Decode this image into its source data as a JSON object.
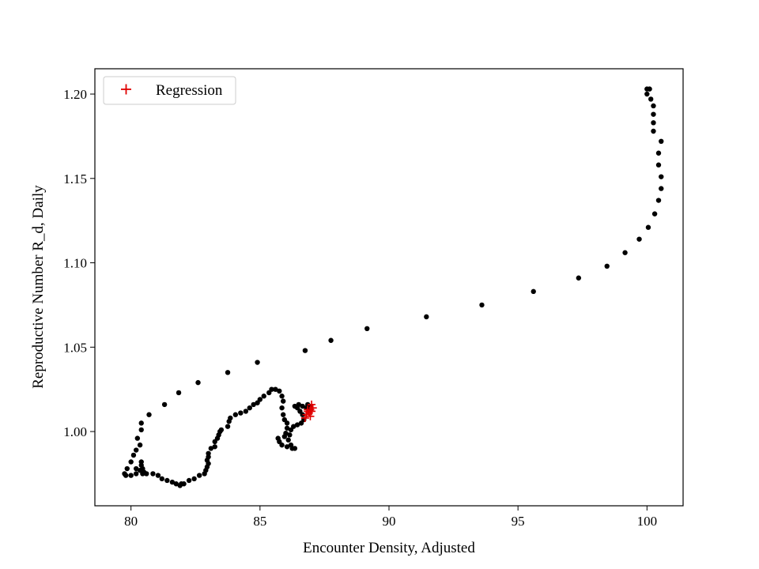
{
  "chart_data": {
    "type": "scatter",
    "title": "",
    "xlabel": "Encounter Density, Adjusted",
    "ylabel": "Reproductive Number R_d, Daily",
    "xlim": [
      78.6,
      101.4
    ],
    "ylim": [
      0.956,
      1.215
    ],
    "xticks": [
      80,
      85,
      90,
      95,
      100
    ],
    "yticks": [
      1.0,
      1.05,
      1.1,
      1.15,
      1.2
    ],
    "xtick_labels": [
      "80",
      "85",
      "90",
      "95",
      "100"
    ],
    "ytick_labels": [
      "1.00",
      "1.05",
      "1.10",
      "1.15",
      "1.20"
    ],
    "grid": false,
    "legend": {
      "position": "top-left",
      "entries": [
        "Regression"
      ]
    },
    "series": [
      {
        "marker": "dot",
        "color": "#000000",
        "points": [
          [
            100.0,
            1.203
          ],
          [
            100.1,
            1.203
          ],
          [
            100.0,
            1.2
          ],
          [
            100.15,
            1.197
          ],
          [
            100.25,
            1.193
          ],
          [
            100.25,
            1.188
          ],
          [
            100.25,
            1.183
          ],
          [
            100.25,
            1.178
          ],
          [
            100.55,
            1.172
          ],
          [
            100.45,
            1.165
          ],
          [
            100.45,
            1.158
          ],
          [
            100.55,
            1.151
          ],
          [
            100.55,
            1.144
          ],
          [
            100.45,
            1.137
          ],
          [
            100.3,
            1.129
          ],
          [
            100.05,
            1.121
          ],
          [
            99.7,
            1.114
          ],
          [
            99.15,
            1.106
          ],
          [
            98.45,
            1.098
          ],
          [
            97.35,
            1.091
          ],
          [
            95.6,
            1.083
          ],
          [
            93.6,
            1.075
          ],
          [
            91.45,
            1.068
          ],
          [
            89.15,
            1.061
          ],
          [
            87.75,
            1.054
          ],
          [
            86.75,
            1.048
          ],
          [
            84.9,
            1.041
          ],
          [
            83.75,
            1.035
          ],
          [
            82.6,
            1.029
          ],
          [
            81.85,
            1.023
          ],
          [
            81.3,
            1.016
          ],
          [
            80.7,
            1.01
          ],
          [
            80.4,
            1.005
          ],
          [
            80.4,
            1.001
          ],
          [
            80.25,
            0.996
          ],
          [
            80.35,
            0.992
          ],
          [
            80.2,
            0.989
          ],
          [
            80.1,
            0.986
          ],
          [
            80.0,
            0.982
          ],
          [
            79.85,
            0.978
          ],
          [
            79.75,
            0.975
          ],
          [
            79.8,
            0.974
          ],
          [
            80.0,
            0.974
          ],
          [
            80.2,
            0.975
          ],
          [
            80.45,
            0.975
          ],
          [
            80.45,
            0.978
          ],
          [
            80.4,
            0.98
          ],
          [
            80.4,
            0.982
          ],
          [
            80.2,
            0.978
          ],
          [
            80.35,
            0.977
          ],
          [
            80.5,
            0.976
          ],
          [
            80.6,
            0.975
          ],
          [
            80.85,
            0.975
          ],
          [
            81.05,
            0.974
          ],
          [
            81.2,
            0.972
          ],
          [
            81.4,
            0.971
          ],
          [
            81.6,
            0.97
          ],
          [
            81.75,
            0.969
          ],
          [
            81.9,
            0.968
          ],
          [
            81.95,
            0.969
          ],
          [
            82.05,
            0.969
          ],
          [
            82.25,
            0.971
          ],
          [
            82.45,
            0.972
          ],
          [
            82.65,
            0.974
          ],
          [
            82.85,
            0.975
          ],
          [
            82.9,
            0.977
          ],
          [
            82.95,
            0.979
          ],
          [
            83.0,
            0.981
          ],
          [
            82.95,
            0.983
          ],
          [
            83.0,
            0.985
          ],
          [
            83.0,
            0.987
          ],
          [
            83.1,
            0.99
          ],
          [
            83.25,
            0.991
          ],
          [
            83.25,
            0.994
          ],
          [
            83.35,
            0.996
          ],
          [
            83.4,
            0.998
          ],
          [
            83.45,
            1.0
          ],
          [
            83.5,
            1.001
          ],
          [
            83.75,
            1.003
          ],
          [
            83.8,
            1.006
          ],
          [
            83.85,
            1.008
          ],
          [
            84.05,
            1.01
          ],
          [
            84.25,
            1.011
          ],
          [
            84.45,
            1.012
          ],
          [
            84.6,
            1.014
          ],
          [
            84.75,
            1.016
          ],
          [
            84.9,
            1.017
          ],
          [
            85.0,
            1.019
          ],
          [
            85.15,
            1.021
          ],
          [
            85.35,
            1.023
          ],
          [
            85.45,
            1.025
          ],
          [
            85.6,
            1.025
          ],
          [
            85.75,
            1.024
          ],
          [
            85.85,
            1.021
          ],
          [
            85.9,
            1.018
          ],
          [
            85.85,
            1.014
          ],
          [
            85.9,
            1.01
          ],
          [
            85.95,
            1.007
          ],
          [
            86.05,
            1.005
          ],
          [
            86.05,
            1.002
          ],
          [
            86.0,
            0.999
          ],
          [
            85.95,
            0.997
          ],
          [
            85.7,
            0.996
          ],
          [
            85.75,
            0.994
          ],
          [
            85.85,
            0.992
          ],
          [
            86.05,
            0.991
          ],
          [
            86.25,
            0.99
          ],
          [
            86.35,
            0.99
          ],
          [
            86.2,
            0.992
          ],
          [
            86.1,
            0.995
          ],
          [
            86.15,
            0.998
          ],
          [
            86.2,
            1.001
          ],
          [
            86.3,
            1.003
          ],
          [
            86.45,
            1.004
          ],
          [
            86.6,
            1.005
          ],
          [
            86.7,
            1.007
          ],
          [
            86.65,
            1.01
          ],
          [
            86.55,
            1.012
          ],
          [
            86.45,
            1.014
          ],
          [
            86.35,
            1.015
          ],
          [
            86.5,
            1.016
          ],
          [
            86.65,
            1.015
          ],
          [
            86.8,
            1.014
          ],
          [
            86.9,
            1.013
          ],
          [
            86.95,
            1.015
          ],
          [
            86.85,
            1.016
          ]
        ]
      },
      {
        "name": "Regression",
        "marker": "plus",
        "color": "#e00000",
        "points": [
          [
            86.75,
            1.008
          ],
          [
            86.8,
            1.01
          ],
          [
            86.85,
            1.012
          ],
          [
            86.9,
            1.011
          ],
          [
            86.95,
            1.013
          ],
          [
            87.0,
            1.016
          ],
          [
            87.05,
            1.014
          ],
          [
            86.95,
            1.009
          ],
          [
            86.85,
            1.013
          ],
          [
            87.0,
            1.012
          ]
        ]
      }
    ]
  }
}
